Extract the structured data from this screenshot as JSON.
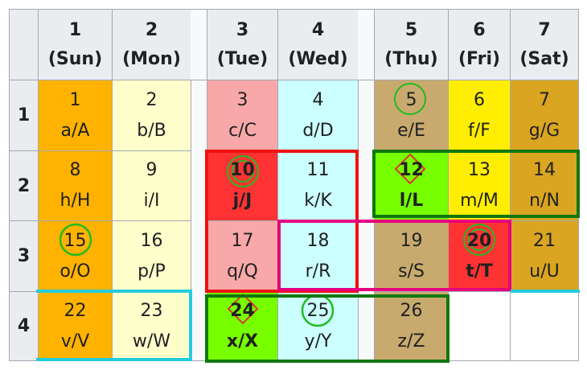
{
  "columns": [
    {
      "num": "1",
      "name": "(Sun)"
    },
    {
      "num": "2",
      "name": "(Mon)"
    },
    {
      "num": "3",
      "name": "(Tue)"
    },
    {
      "num": "4",
      "name": "(Wed)"
    },
    {
      "num": "5",
      "name": "(Thu)"
    },
    {
      "num": "6",
      "name": "(Fri)"
    },
    {
      "num": "7",
      "name": "(Sat)"
    }
  ],
  "rows": [
    "1",
    "2",
    "3",
    "4"
  ],
  "cells": [
    {
      "num": "1",
      "letters": "a/A"
    },
    {
      "num": "2",
      "letters": "b/B"
    },
    {
      "num": "3",
      "letters": "c/C"
    },
    {
      "num": "4",
      "letters": "d/D"
    },
    {
      "num": "5",
      "letters": "e/E"
    },
    {
      "num": "6",
      "letters": "f/F"
    },
    {
      "num": "7",
      "letters": "g/G"
    },
    {
      "num": "8",
      "letters": "h/H"
    },
    {
      "num": "9",
      "letters": "i/I"
    },
    {
      "num": "10",
      "letters": "j/J"
    },
    {
      "num": "11",
      "letters": "k/K"
    },
    {
      "num": "12",
      "letters": "l/L"
    },
    {
      "num": "13",
      "letters": "m/M"
    },
    {
      "num": "14",
      "letters": "n/N"
    },
    {
      "num": "15",
      "letters": "o/O"
    },
    {
      "num": "16",
      "letters": "p/P"
    },
    {
      "num": "17",
      "letters": "q/Q"
    },
    {
      "num": "18",
      "letters": "r/R"
    },
    {
      "num": "19",
      "letters": "s/S"
    },
    {
      "num": "20",
      "letters": "t/T"
    },
    {
      "num": "21",
      "letters": "u/U"
    },
    {
      "num": "22",
      "letters": "v/V"
    },
    {
      "num": "23",
      "letters": "w/W"
    },
    {
      "num": "24",
      "letters": "x/X"
    },
    {
      "num": "25",
      "letters": "y/Y"
    },
    {
      "num": "26",
      "letters": "z/Z"
    }
  ],
  "colors": {
    "header_bg": "#eaecf0",
    "sunday": "#ffb300",
    "monday": "#ffffcc",
    "tuesday": "#f8a8a8",
    "wednesday": "#ccffff",
    "thursday": "#c8aa6e",
    "friday": "#ffee00",
    "saturday": "#daa520",
    "highlight_red": "#ff3333",
    "highlight_green": "#77ff00",
    "outline_red": "#ee1111",
    "outline_darkgreen": "#117711",
    "outline_magenta": "#e6007e",
    "outline_cyan": "#22ccdd",
    "marker_green": "#22bb22",
    "marker_diamond": "#dd3333"
  }
}
